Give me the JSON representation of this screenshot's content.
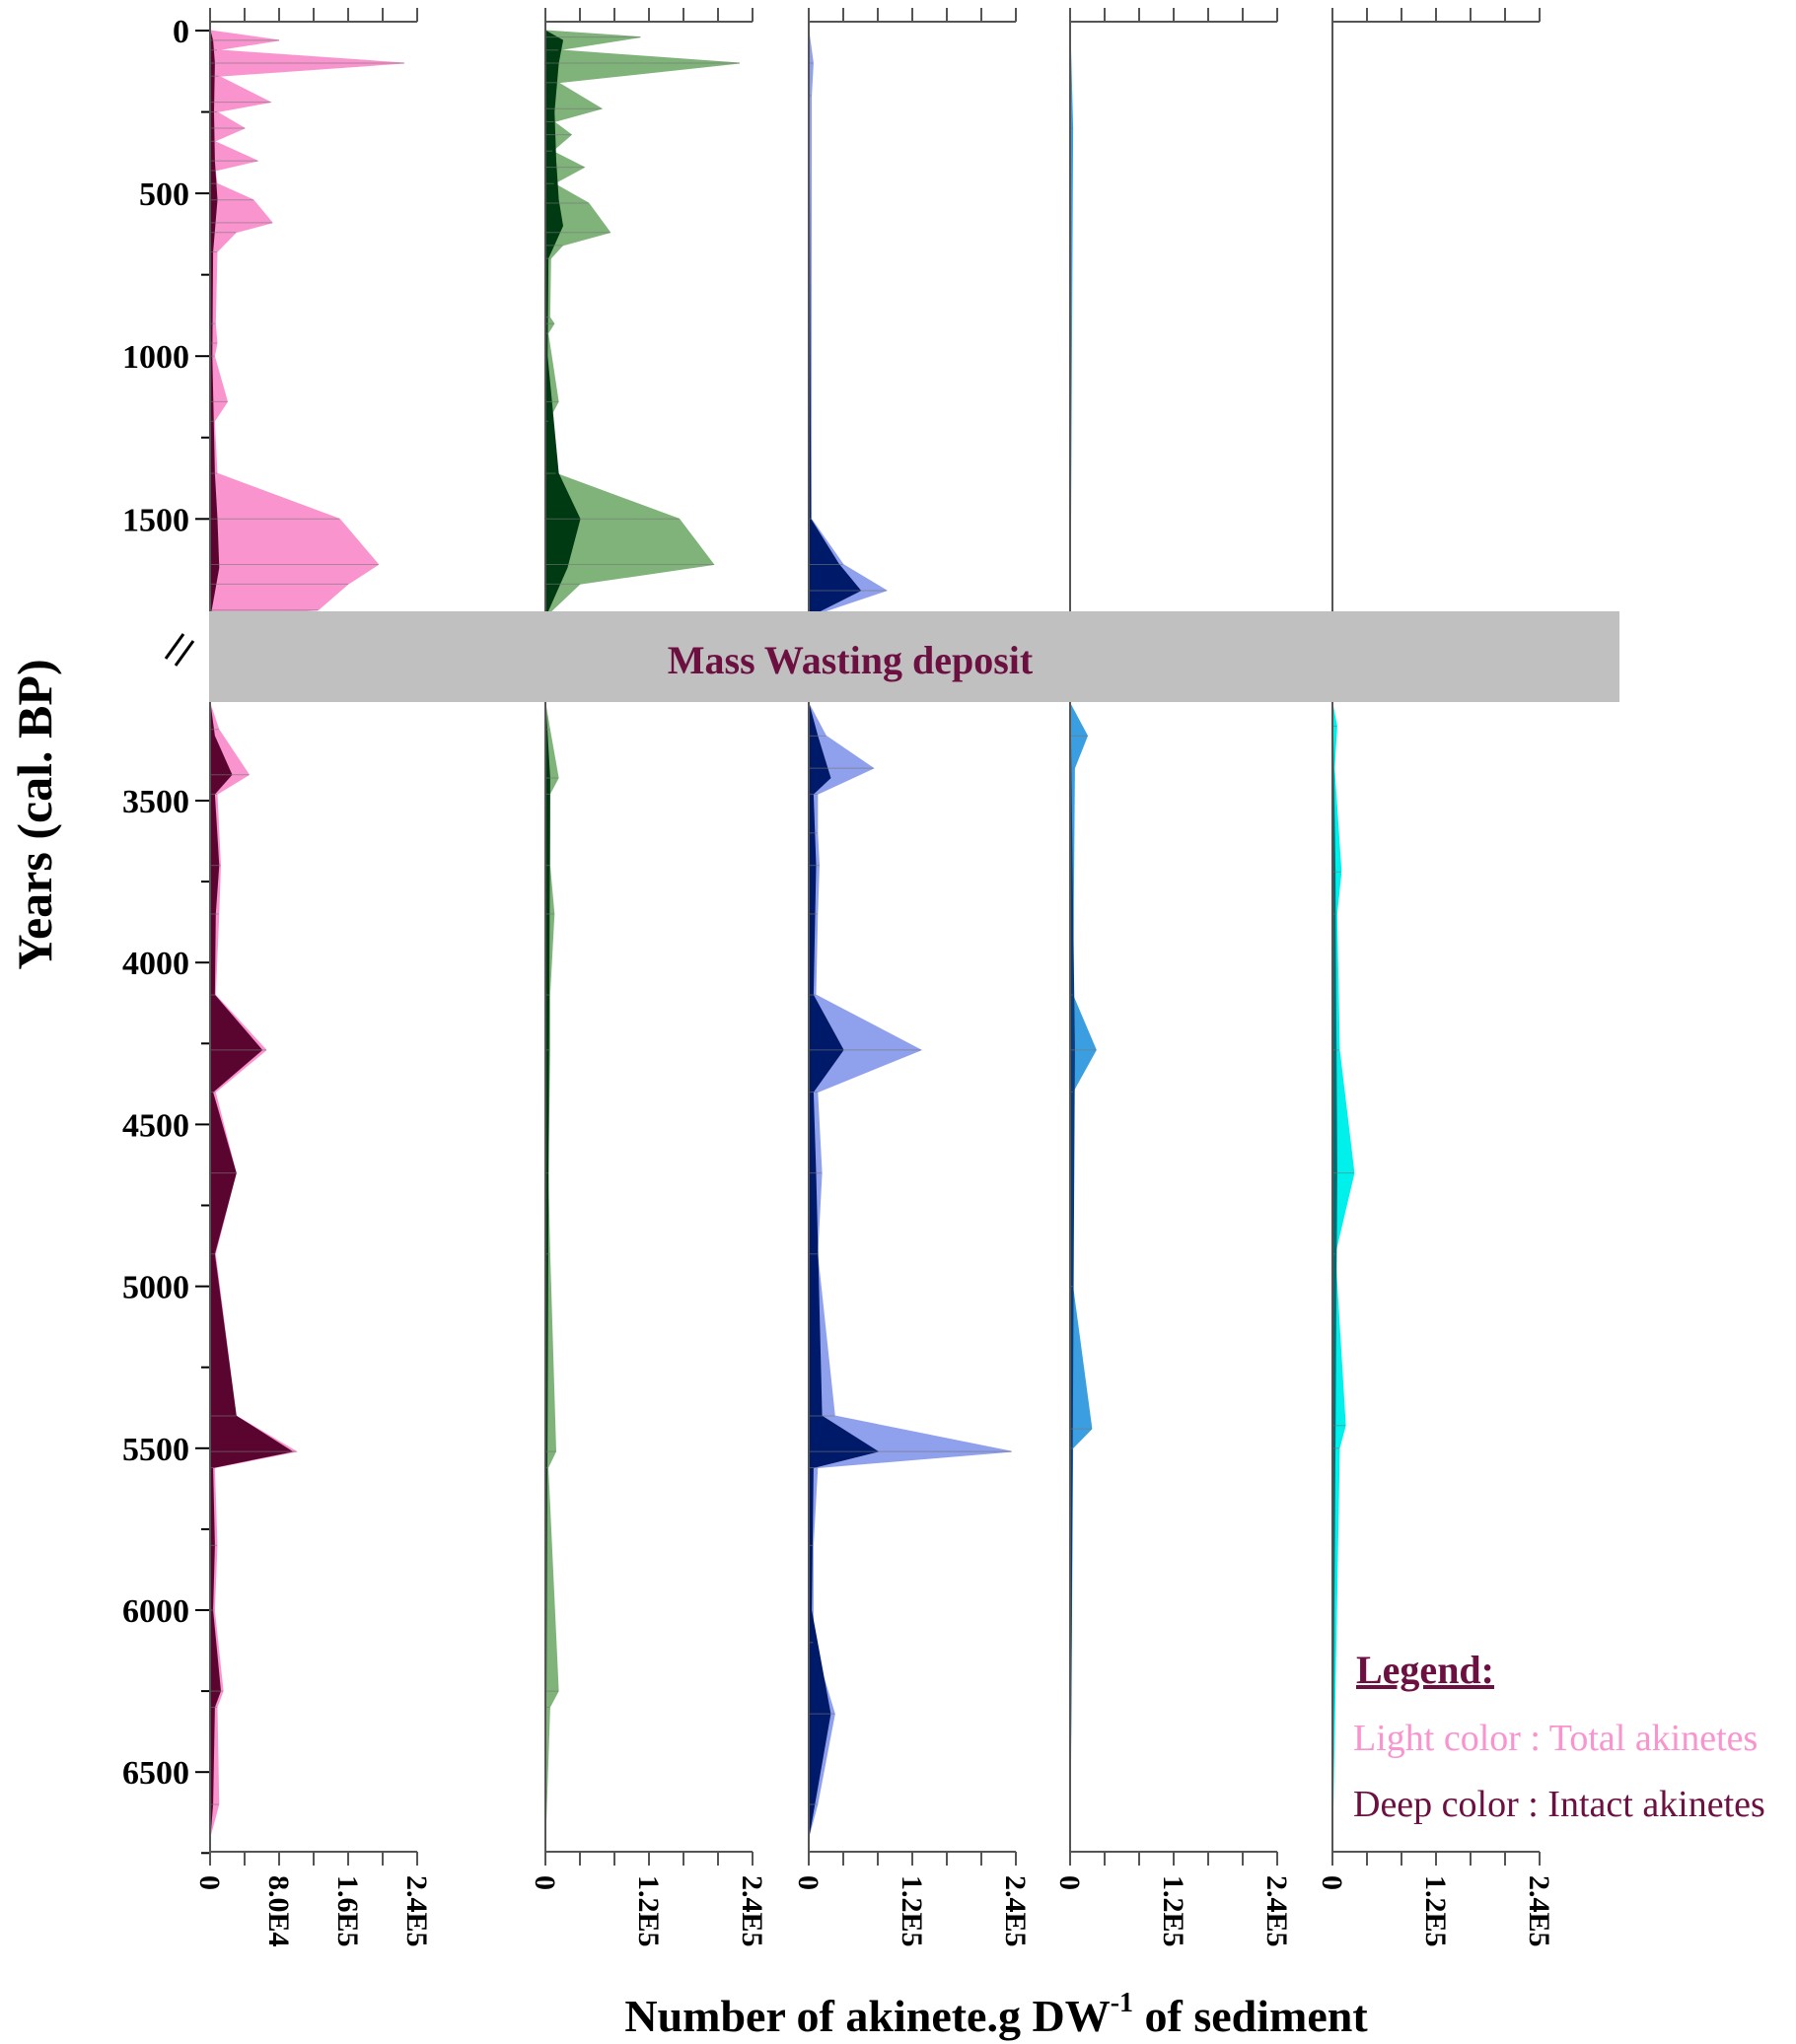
{
  "chart_data": {
    "type": "area",
    "title": "",
    "ylabel": "Years (cal. BP)",
    "xlabel": "Number of akinete.g DW",
    "xlabel_sup": "-1",
    "xlabel_tail": " of sediment",
    "y_axis": {
      "reversed": true,
      "broken": true,
      "upper_ticks": [
        "0",
        "500",
        "1000",
        "1500"
      ],
      "lower_ticks": [
        "3500",
        "4000",
        "4500",
        "5000",
        "5500",
        "6000",
        "6500"
      ]
    },
    "break_band": {
      "label": "Mass Wasting deposit",
      "from": 1800,
      "to": 3200,
      "color": "#c0c0c0",
      "text_color": "#6b1040"
    },
    "legend": {
      "title": "Legend:",
      "light": "Light color : Total akinetes",
      "deep": "Deep color : Intact akinetes",
      "placement": "bottom-right"
    },
    "panels": [
      {
        "xlim": [
          0,
          240000
        ],
        "ticks": [
          "0",
          "8.0E4",
          "1.6E5",
          "2.4E5"
        ],
        "light": "#f994cf",
        "deep": "#5a0530",
        "total": [
          [
            0,
            0
          ],
          [
            30,
            80000
          ],
          [
            60,
            8000
          ],
          [
            100,
            225000
          ],
          [
            140,
            10000
          ],
          [
            220,
            70000
          ],
          [
            250,
            8000
          ],
          [
            300,
            40000
          ],
          [
            340,
            5000
          ],
          [
            400,
            55000
          ],
          [
            430,
            6000
          ],
          [
            470,
            8000
          ],
          [
            520,
            50000
          ],
          [
            590,
            72000
          ],
          [
            620,
            30000
          ],
          [
            680,
            8000
          ],
          [
            900,
            6000
          ],
          [
            960,
            8000
          ],
          [
            1000,
            5000
          ],
          [
            1140,
            20000
          ],
          [
            1200,
            5000
          ],
          [
            1360,
            8000
          ],
          [
            1500,
            150000
          ],
          [
            1640,
            195000
          ],
          [
            1700,
            160000
          ],
          [
            1780,
            125000
          ],
          [
            1800,
            0
          ],
          [
            3200,
            0
          ],
          [
            3280,
            10000
          ],
          [
            3420,
            45000
          ],
          [
            3480,
            8000
          ],
          [
            3700,
            12000
          ],
          [
            3850,
            10000
          ],
          [
            4100,
            6000
          ],
          [
            4270,
            65000
          ],
          [
            4400,
            6000
          ],
          [
            4650,
            30000
          ],
          [
            4900,
            6000
          ],
          [
            5400,
            30000
          ],
          [
            5510,
            100000
          ],
          [
            5560,
            5000
          ],
          [
            5800,
            8000
          ],
          [
            6000,
            5000
          ],
          [
            6250,
            15000
          ],
          [
            6300,
            8000
          ],
          [
            6600,
            10000
          ],
          [
            6700,
            0
          ]
        ],
        "intact": [
          [
            0,
            0
          ],
          [
            30,
            3000
          ],
          [
            100,
            5000
          ],
          [
            250,
            4000
          ],
          [
            400,
            5000
          ],
          [
            520,
            8000
          ],
          [
            680,
            3000
          ],
          [
            1000,
            2000
          ],
          [
            1360,
            5000
          ],
          [
            1500,
            8000
          ],
          [
            1650,
            10000
          ],
          [
            1800,
            0
          ],
          [
            3200,
            0
          ],
          [
            3300,
            5000
          ],
          [
            3420,
            25000
          ],
          [
            3480,
            5000
          ],
          [
            3700,
            10000
          ],
          [
            3850,
            6000
          ],
          [
            4100,
            5000
          ],
          [
            4270,
            60000
          ],
          [
            4400,
            3000
          ],
          [
            4650,
            30000
          ],
          [
            4900,
            5000
          ],
          [
            5400,
            30000
          ],
          [
            5510,
            95000
          ],
          [
            5560,
            3000
          ],
          [
            5800,
            5000
          ],
          [
            6000,
            3000
          ],
          [
            6250,
            12000
          ],
          [
            6300,
            5000
          ],
          [
            6600,
            3000
          ],
          [
            6700,
            0
          ]
        ]
      },
      {
        "xlim": [
          0,
          240000
        ],
        "ticks": [
          "0",
          "1.2E5",
          "2.4E5"
        ],
        "light": "#7fb37a",
        "deep": "#003a12",
        "total": [
          [
            0,
            0
          ],
          [
            20,
            110000
          ],
          [
            60,
            15000
          ],
          [
            100,
            225000
          ],
          [
            160,
            15000
          ],
          [
            240,
            65000
          ],
          [
            280,
            10000
          ],
          [
            320,
            30000
          ],
          [
            370,
            8000
          ],
          [
            420,
            45000
          ],
          [
            470,
            10000
          ],
          [
            530,
            50000
          ],
          [
            620,
            75000
          ],
          [
            660,
            20000
          ],
          [
            700,
            6000
          ],
          [
            880,
            5000
          ],
          [
            900,
            10000
          ],
          [
            930,
            3000
          ],
          [
            1140,
            15000
          ],
          [
            1200,
            3000
          ],
          [
            1360,
            12000
          ],
          [
            1500,
            155000
          ],
          [
            1640,
            195000
          ],
          [
            1700,
            40000
          ],
          [
            1800,
            0
          ],
          [
            3200,
            0
          ],
          [
            3280,
            5000
          ],
          [
            3430,
            15000
          ],
          [
            3480,
            5000
          ],
          [
            3700,
            5000
          ],
          [
            3850,
            10000
          ],
          [
            4100,
            5000
          ],
          [
            4270,
            5000
          ],
          [
            4650,
            3000
          ],
          [
            4900,
            5000
          ],
          [
            5510,
            12000
          ],
          [
            5560,
            3000
          ],
          [
            6250,
            15000
          ],
          [
            6300,
            5000
          ],
          [
            6700,
            0
          ]
        ],
        "intact": [
          [
            0,
            0
          ],
          [
            30,
            20000
          ],
          [
            100,
            15000
          ],
          [
            250,
            10000
          ],
          [
            400,
            12000
          ],
          [
            520,
            15000
          ],
          [
            600,
            20000
          ],
          [
            700,
            3000
          ],
          [
            1000,
            2000
          ],
          [
            1360,
            15000
          ],
          [
            1500,
            40000
          ],
          [
            1650,
            25000
          ],
          [
            1800,
            0
          ],
          [
            3200,
            0
          ],
          [
            3430,
            5000
          ],
          [
            6700,
            0
          ]
        ]
      },
      {
        "xlim": [
          0,
          240000
        ],
        "ticks": [
          "0",
          "1.2E5",
          "2.4E5"
        ],
        "light": "#8fa0ec",
        "deep": "#001a6a",
        "total": [
          [
            0,
            0
          ],
          [
            100,
            5000
          ],
          [
            200,
            3000
          ],
          [
            1500,
            3000
          ],
          [
            1640,
            40000
          ],
          [
            1720,
            90000
          ],
          [
            1800,
            0
          ],
          [
            3200,
            0
          ],
          [
            3300,
            20000
          ],
          [
            3400,
            75000
          ],
          [
            3480,
            10000
          ],
          [
            3600,
            10000
          ],
          [
            3700,
            12000
          ],
          [
            3850,
            10000
          ],
          [
            4100,
            8000
          ],
          [
            4270,
            130000
          ],
          [
            4400,
            10000
          ],
          [
            4650,
            15000
          ],
          [
            4900,
            10000
          ],
          [
            5400,
            30000
          ],
          [
            5510,
            235000
          ],
          [
            5560,
            10000
          ],
          [
            5800,
            5000
          ],
          [
            6100,
            5000
          ],
          [
            6320,
            30000
          ],
          [
            6600,
            10000
          ],
          [
            6700,
            0
          ]
        ],
        "intact": [
          [
            0,
            0
          ],
          [
            1500,
            2000
          ],
          [
            1640,
            35000
          ],
          [
            1720,
            60000
          ],
          [
            1800,
            0
          ],
          [
            3200,
            0
          ],
          [
            3300,
            10000
          ],
          [
            3430,
            25000
          ],
          [
            3480,
            5000
          ],
          [
            3700,
            8000
          ],
          [
            4100,
            5000
          ],
          [
            4270,
            40000
          ],
          [
            4400,
            5000
          ],
          [
            4650,
            8000
          ],
          [
            5400,
            15000
          ],
          [
            5510,
            80000
          ],
          [
            5560,
            5000
          ],
          [
            6000,
            3000
          ],
          [
            6320,
            25000
          ],
          [
            6700,
            0
          ]
        ]
      },
      {
        "xlim": [
          0,
          240000
        ],
        "ticks": [
          "0",
          "1.2E5",
          "2.4E5"
        ],
        "light": "#3a9ee0",
        "deep": "#0a3c7a",
        "total": [
          [
            0,
            0
          ],
          [
            300,
            3000
          ],
          [
            1800,
            0
          ],
          [
            3200,
            0
          ],
          [
            3300,
            20000
          ],
          [
            3400,
            5000
          ],
          [
            4100,
            3000
          ],
          [
            4270,
            30000
          ],
          [
            4400,
            3000
          ],
          [
            5000,
            3000
          ],
          [
            5440,
            25000
          ],
          [
            5500,
            3000
          ],
          [
            6700,
            0
          ]
        ],
        "intact": [
          [
            0,
            0
          ],
          [
            1800,
            0
          ],
          [
            3200,
            0
          ],
          [
            4270,
            5000
          ],
          [
            6700,
            0
          ]
        ]
      },
      {
        "xlim": [
          0,
          240000
        ],
        "ticks": [
          "0",
          "1.2E5",
          "2.4E5"
        ],
        "light": "#00f0ec",
        "deep": "#006c72",
        "total": [
          [
            0,
            0
          ],
          [
            1800,
            0
          ],
          [
            3200,
            0
          ],
          [
            3270,
            5000
          ],
          [
            3400,
            2000
          ],
          [
            3720,
            10000
          ],
          [
            3850,
            5000
          ],
          [
            4270,
            8000
          ],
          [
            4650,
            25000
          ],
          [
            4900,
            3000
          ],
          [
            5430,
            15000
          ],
          [
            5500,
            8000
          ],
          [
            6700,
            0
          ]
        ],
        "intact": [
          [
            0,
            0
          ],
          [
            1800,
            0
          ],
          [
            3200,
            0
          ],
          [
            3720,
            3000
          ],
          [
            4650,
            5000
          ],
          [
            6700,
            0
          ]
        ]
      }
    ]
  }
}
